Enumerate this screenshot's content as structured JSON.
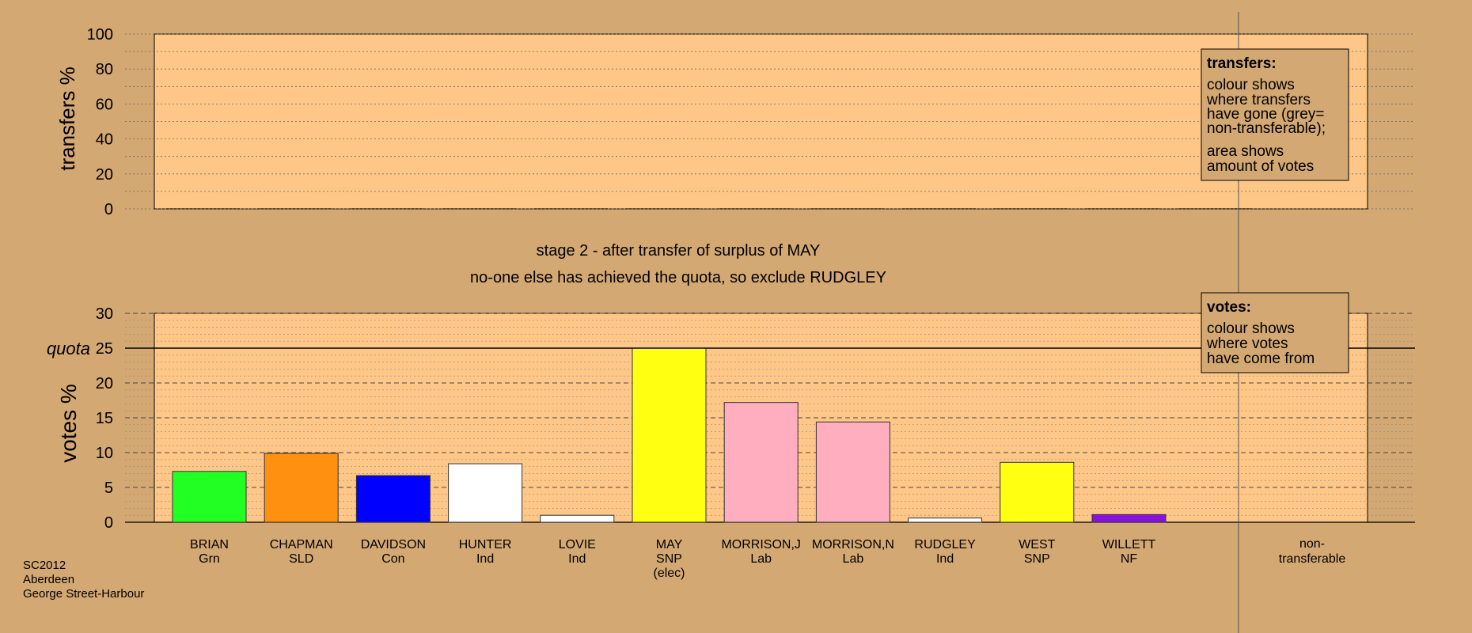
{
  "chart_data": {
    "type": "bar",
    "stage_text": "stage 2 - after transfer of surplus of MAY",
    "status_text": "no-one else has achieved the quota, so exclude RUDGLEY",
    "footer": [
      "SC2012",
      "Aberdeen",
      "George Street-Harbour"
    ],
    "transfers_panel": {
      "ylabel": "transfers %",
      "ylim": [
        0,
        100
      ],
      "ticks": [
        0,
        20,
        40,
        60,
        80,
        100
      ],
      "values": [
        0,
        0,
        0,
        0,
        0,
        0,
        0,
        0,
        0,
        0,
        0,
        0
      ],
      "legend": {
        "title": "transfers:",
        "lines1": [
          "colour shows",
          "where transfers",
          "have gone (grey=",
          "non-transferable);"
        ],
        "lines2": [
          "area shows",
          "amount of votes"
        ]
      }
    },
    "votes_panel": {
      "ylabel": "votes %",
      "ylim": [
        0,
        30
      ],
      "ticks": [
        0,
        5,
        10,
        15,
        20,
        25,
        30
      ],
      "quota_label": "quota",
      "quota": 25,
      "legend": {
        "title": "votes:",
        "lines": [
          "colour shows",
          "where votes",
          "have come from"
        ]
      }
    },
    "candidates": [
      {
        "name": "BRIAN",
        "party": "Grn",
        "note": "",
        "value": 7.3,
        "color": "#22ff22"
      },
      {
        "name": "CHAPMAN",
        "party": "SLD",
        "note": "",
        "value": 9.9,
        "color": "#ff9010"
      },
      {
        "name": "DAVIDSON",
        "party": "Con",
        "note": "",
        "value": 6.7,
        "color": "#0000ff"
      },
      {
        "name": "HUNTER",
        "party": "Ind",
        "note": "",
        "value": 8.4,
        "color": "#ffffff"
      },
      {
        "name": "LOVIE",
        "party": "Ind",
        "note": "",
        "value": 1.0,
        "color": "#ffffff"
      },
      {
        "name": "MAY",
        "party": "SNP",
        "note": "(elec)",
        "value": 25.0,
        "color": "#ffff11"
      },
      {
        "name": "MORRISON,J",
        "party": "Lab",
        "note": "",
        "value": 17.2,
        "color": "#ffaec0"
      },
      {
        "name": "MORRISON,N",
        "party": "Lab",
        "note": "",
        "value": 14.4,
        "color": "#ffaec0"
      },
      {
        "name": "RUDGLEY",
        "party": "Ind",
        "note": "",
        "value": 0.6,
        "color": "#ffffff"
      },
      {
        "name": "WEST",
        "party": "SNP",
        "note": "",
        "value": 8.6,
        "color": "#ffff11"
      },
      {
        "name": "WILLETT",
        "party": "NF",
        "note": "",
        "value": 1.1,
        "color": "#8a10e0"
      }
    ],
    "nontransferable": {
      "name": "non-",
      "name2": "transferable",
      "value": 0
    }
  }
}
